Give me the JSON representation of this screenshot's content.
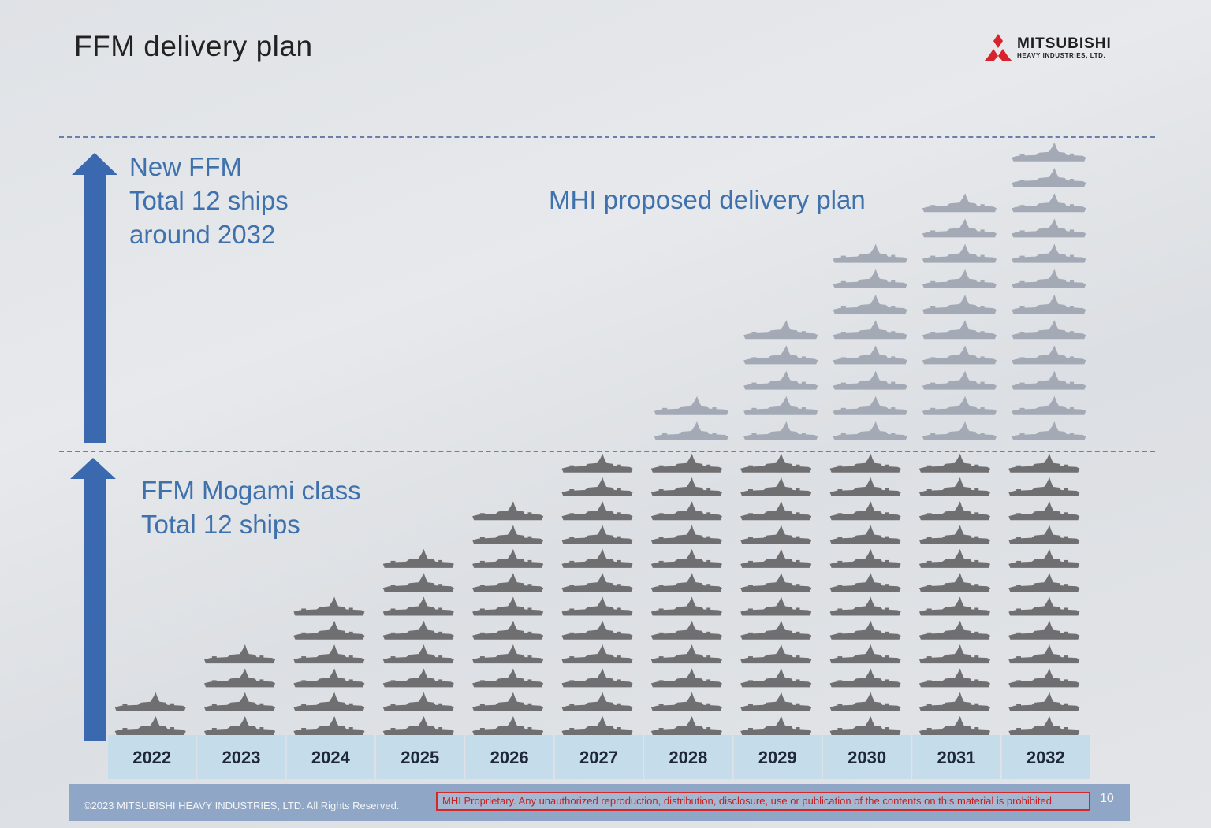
{
  "header": {
    "title": "FFM delivery plan",
    "logo_text": "MITSUBISHI",
    "logo_subtext": "HEAVY INDUSTRIES, LTD."
  },
  "annotations": {
    "new_ffm": "New FFM\nTotal 12 ships\naround 2032",
    "mogami": "FFM Mogami  class\nTotal 12 ships",
    "proposed_plan": "MHI proposed  delivery plan"
  },
  "footer": {
    "copyright": "©2023 MITSUBISHI HEAVY INDUSTRIES, LTD.  All Rights Reserved.",
    "proprietary_notice": "MHI Proprietary. Any unauthorized reproduction, distribution, disclosure, use or publication of the contents on this material is prohibited.",
    "page_number": "10"
  },
  "colors": {
    "accent_blue": "#3f72ad",
    "arrow_blue": "#3a69b0",
    "mogami_ship": "#6f6e70",
    "new_ship": "#a3aab5",
    "year_band": "#c5dceb",
    "logo_red": "#d7232b"
  },
  "chart_data": {
    "type": "bar",
    "categories": [
      "2022",
      "2023",
      "2024",
      "2025",
      "2026",
      "2027",
      "2028",
      "2029",
      "2030",
      "2031",
      "2032"
    ],
    "series": [
      {
        "name": "FFM Mogami  class",
        "values": [
          2,
          4,
          6,
          8,
          10,
          12,
          12,
          12,
          12,
          12,
          12
        ]
      },
      {
        "name": "New FFM",
        "values": [
          0,
          0,
          0,
          0,
          0,
          0,
          2,
          5,
          8,
          10,
          12
        ]
      }
    ]
  }
}
